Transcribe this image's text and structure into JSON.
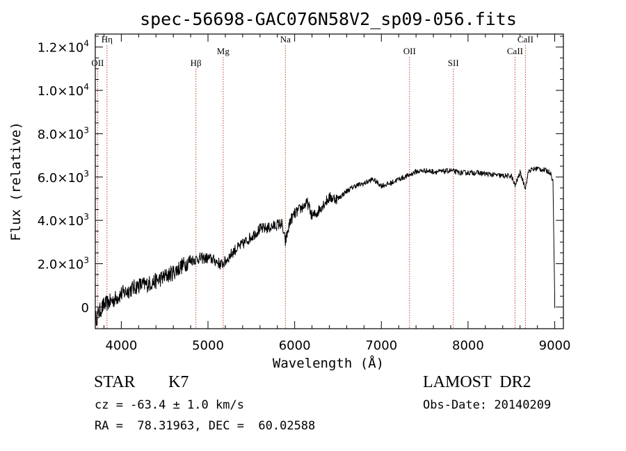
{
  "chart_data": {
    "type": "line",
    "title": "spec-56698-GAC076N58V2_sp09-056.fits",
    "xlabel": "Wavelength (Å)",
    "ylabel": "Flux (relative)",
    "xlim": [
      3700,
      9100
    ],
    "ylim": [
      -1000,
      12600
    ],
    "x_ticks": [
      4000,
      5000,
      6000,
      7000,
      8000,
      9000
    ],
    "y_ticks": [
      {
        "value": 0,
        "mant": "0",
        "exp": ""
      },
      {
        "value": 2000,
        "mant": "2.0×10",
        "exp": "3"
      },
      {
        "value": 4000,
        "mant": "4.0×10",
        "exp": "3"
      },
      {
        "value": 6000,
        "mant": "6.0×10",
        "exp": "3"
      },
      {
        "value": 8000,
        "mant": "8.0×10",
        "exp": "3"
      },
      {
        "value": 10000,
        "mant": "1.0×10",
        "exp": "4"
      },
      {
        "value": 12000,
        "mant": "1.2×10",
        "exp": "4"
      }
    ],
    "grid": false,
    "line_color": "#000000",
    "marker_color": "#c0392b",
    "spectral_lines": [
      {
        "label": "OII",
        "wavelength": 3727,
        "level": 2
      },
      {
        "label": "Hη",
        "wavelength": 3835,
        "level": 0
      },
      {
        "label": "Hβ",
        "wavelength": 4861,
        "level": 2
      },
      {
        "label": "Mg",
        "wavelength": 5175,
        "level": 1
      },
      {
        "label": "Na",
        "wavelength": 5893,
        "level": 0
      },
      {
        "label": "OII",
        "wavelength": 7325,
        "level": 1
      },
      {
        "label": "SII",
        "wavelength": 7830,
        "level": 2
      },
      {
        "label": "CaII",
        "wavelength": 8542,
        "level": 1
      },
      {
        "label": "CaII",
        "wavelength": 8662,
        "level": 0
      }
    ],
    "series": [
      {
        "points": [
          [
            3700,
            -600
          ],
          [
            3750,
            -200
          ],
          [
            3800,
            100
          ],
          [
            3850,
            200
          ],
          [
            3900,
            300
          ],
          [
            3950,
            450
          ],
          [
            4000,
            600
          ],
          [
            4100,
            800
          ],
          [
            4200,
            1000
          ],
          [
            4300,
            1050
          ],
          [
            4400,
            1200
          ],
          [
            4500,
            1400
          ],
          [
            4600,
            1600
          ],
          [
            4700,
            1900
          ],
          [
            4800,
            2150
          ],
          [
            4900,
            2250
          ],
          [
            5000,
            2250
          ],
          [
            5050,
            2200
          ],
          [
            5100,
            2100
          ],
          [
            5150,
            1950
          ],
          [
            5200,
            2100
          ],
          [
            5300,
            2600
          ],
          [
            5400,
            2900
          ],
          [
            5500,
            3250
          ],
          [
            5600,
            3600
          ],
          [
            5700,
            3650
          ],
          [
            5800,
            3800
          ],
          [
            5850,
            3850
          ],
          [
            5893,
            3000
          ],
          [
            5950,
            4000
          ],
          [
            6000,
            4300
          ],
          [
            6100,
            4650
          ],
          [
            6150,
            4800
          ],
          [
            6200,
            4200
          ],
          [
            6250,
            4300
          ],
          [
            6300,
            4600
          ],
          [
            6400,
            5050
          ],
          [
            6500,
            5000
          ],
          [
            6600,
            5350
          ],
          [
            6700,
            5600
          ],
          [
            6800,
            5700
          ],
          [
            6900,
            5900
          ],
          [
            7000,
            5600
          ],
          [
            7100,
            5700
          ],
          [
            7200,
            5900
          ],
          [
            7300,
            6050
          ],
          [
            7400,
            6250
          ],
          [
            7500,
            6300
          ],
          [
            7600,
            6250
          ],
          [
            7700,
            6250
          ],
          [
            7800,
            6300
          ],
          [
            7900,
            6200
          ],
          [
            8000,
            6200
          ],
          [
            8100,
            6200
          ],
          [
            8200,
            6150
          ],
          [
            8300,
            6100
          ],
          [
            8400,
            6050
          ],
          [
            8500,
            6050
          ],
          [
            8542,
            5600
          ],
          [
            8600,
            6200
          ],
          [
            8662,
            5500
          ],
          [
            8700,
            6300
          ],
          [
            8800,
            6400
          ],
          [
            8900,
            6300
          ],
          [
            8950,
            6200
          ],
          [
            8980,
            5800
          ],
          [
            9000,
            500
          ]
        ]
      }
    ]
  },
  "info": {
    "object_type": "STAR",
    "subclass": "K7",
    "survey": "LAMOST  DR2",
    "redshift": "cz = -63.4 ± 1.0 km/s",
    "obs_date": "Obs-Date: 20140209",
    "coords": "RA =  78.31963, DEC =  60.02588"
  }
}
